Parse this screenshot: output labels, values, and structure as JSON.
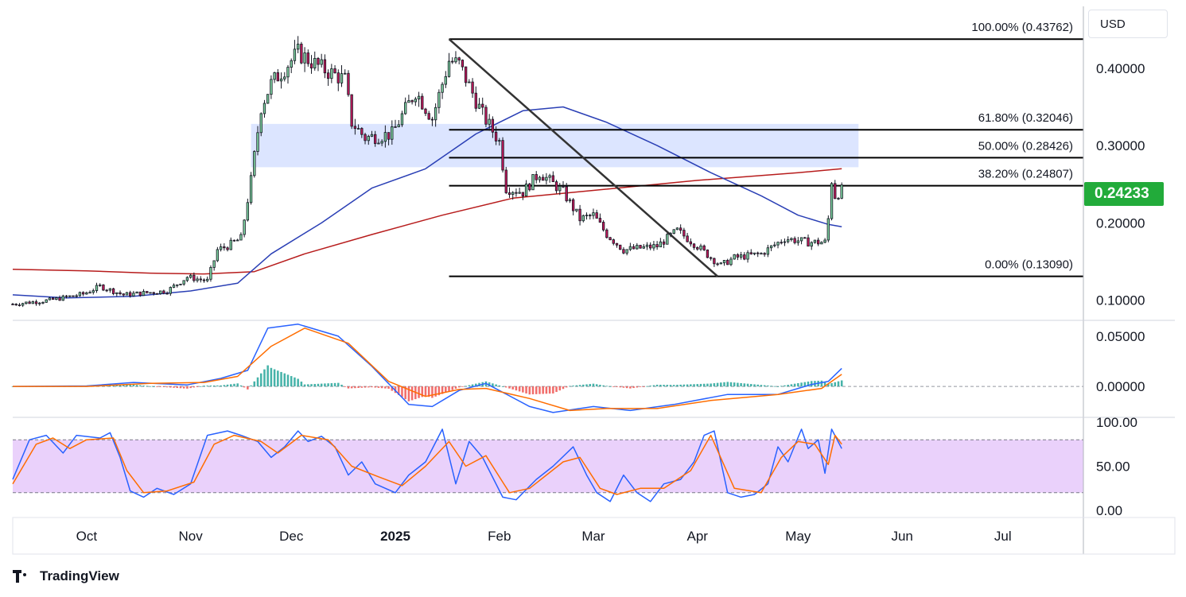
{
  "currency": "USD",
  "last_price_label": "0.24233",
  "brand": "TradingView",
  "colors": {
    "up": "#26a69a",
    "down": "#ef5350",
    "candle": "#131722",
    "ma_fast": "#2a3fb5",
    "ma_slow": "#b71c1c",
    "zone": "#d6e0ff",
    "macd": "#2962ff",
    "signal": "#ff6d00",
    "stoch_fill": "#ead1fb",
    "price_tag": "#22ab3a"
  },
  "chart_data": [
    {
      "type": "candlestick",
      "title": "",
      "ylim": [
        0.075,
        0.48
      ],
      "y_ticks": [
        {
          "value": 0.4,
          "label": "0.40000"
        },
        {
          "value": 0.3,
          "label": "0.30000"
        },
        {
          "value": 0.2,
          "label": "0.20000"
        },
        {
          "value": 0.1,
          "label": "0.10000"
        }
      ],
      "x_range": [
        "2024-09-09",
        "2025-07-25"
      ],
      "x_ticks": [
        {
          "date": "2024-10-01",
          "label": "Oct",
          "bold": false
        },
        {
          "date": "2024-11-01",
          "label": "Nov",
          "bold": false
        },
        {
          "date": "2024-12-01",
          "label": "Dec",
          "bold": false
        },
        {
          "date": "2025-01-01",
          "label": "2025",
          "bold": true
        },
        {
          "date": "2025-02-01",
          "label": "Feb",
          "bold": false
        },
        {
          "date": "2025-03-01",
          "label": "Mar",
          "bold": false
        },
        {
          "date": "2025-04-01",
          "label": "Apr",
          "bold": false
        },
        {
          "date": "2025-05-01",
          "label": "May",
          "bold": false
        },
        {
          "date": "2025-06-01",
          "label": "Jun",
          "bold": false
        },
        {
          "date": "2025-07-01",
          "label": "Jul",
          "bold": false
        }
      ],
      "last_date": "2025-05-14",
      "close_path": [
        [
          "2024-09-09",
          0.095
        ],
        [
          "2024-09-20",
          0.1
        ],
        [
          "2024-09-30",
          0.108
        ],
        [
          "2024-10-05",
          0.118
        ],
        [
          "2024-10-12",
          0.107
        ],
        [
          "2024-10-25",
          0.112
        ],
        [
          "2024-10-31",
          0.13
        ],
        [
          "2024-11-06",
          0.125
        ],
        [
          "2024-11-09",
          0.165
        ],
        [
          "2024-11-12",
          0.17
        ],
        [
          "2024-11-16",
          0.18
        ],
        [
          "2024-11-19",
          0.255
        ],
        [
          "2024-11-22",
          0.35
        ],
        [
          "2024-11-25",
          0.38
        ],
        [
          "2024-12-03",
          0.42
        ],
        [
          "2024-12-10",
          0.4
        ],
        [
          "2024-12-17",
          0.385
        ],
        [
          "2024-12-19",
          0.33
        ],
        [
          "2024-12-23",
          0.31
        ],
        [
          "2024-12-31",
          0.315
        ],
        [
          "2025-01-07",
          0.37
        ],
        [
          "2025-01-12",
          0.335
        ],
        [
          "2025-01-17",
          0.41
        ],
        [
          "2025-01-20",
          0.405
        ],
        [
          "2025-01-27",
          0.34
        ],
        [
          "2025-02-01",
          0.305
        ],
        [
          "2025-02-03",
          0.245
        ],
        [
          "2025-02-08",
          0.24
        ],
        [
          "2025-02-13",
          0.265
        ],
        [
          "2025-02-20",
          0.24
        ],
        [
          "2025-02-25",
          0.205
        ],
        [
          "2025-03-01",
          0.21
        ],
        [
          "2025-03-05",
          0.185
        ],
        [
          "2025-03-10",
          0.165
        ],
        [
          "2025-03-20",
          0.17
        ],
        [
          "2025-03-26",
          0.19
        ],
        [
          "2025-04-01",
          0.17
        ],
        [
          "2025-04-05",
          0.155
        ],
        [
          "2025-04-08",
          0.145
        ],
        [
          "2025-04-12",
          0.155
        ],
        [
          "2025-04-20",
          0.16
        ],
        [
          "2025-04-27",
          0.18
        ],
        [
          "2025-05-04",
          0.175
        ],
        [
          "2025-05-09",
          0.175
        ],
        [
          "2025-05-10",
          0.205
        ],
        [
          "2025-05-11",
          0.255
        ],
        [
          "2025-05-12",
          0.235
        ],
        [
          "2025-05-14",
          0.24233
        ]
      ],
      "ma_fast": [
        [
          "2024-09-09",
          0.107
        ],
        [
          "2024-09-25",
          0.103
        ],
        [
          "2024-10-15",
          0.105
        ],
        [
          "2024-11-01",
          0.112
        ],
        [
          "2024-11-15",
          0.122
        ],
        [
          "2024-11-25",
          0.16
        ],
        [
          "2024-12-10",
          0.2
        ],
        [
          "2024-12-25",
          0.245
        ],
        [
          "2025-01-10",
          0.27
        ],
        [
          "2025-01-25",
          0.315
        ],
        [
          "2025-02-08",
          0.345
        ],
        [
          "2025-02-20",
          0.35
        ],
        [
          "2025-03-05",
          0.33
        ],
        [
          "2025-03-20",
          0.3
        ],
        [
          "2025-04-05",
          0.265
        ],
        [
          "2025-04-20",
          0.235
        ],
        [
          "2025-05-01",
          0.21
        ],
        [
          "2025-05-10",
          0.198
        ],
        [
          "2025-05-14",
          0.195
        ]
      ],
      "ma_slow": [
        [
          "2024-09-09",
          0.14
        ],
        [
          "2024-10-01",
          0.138
        ],
        [
          "2024-10-20",
          0.135
        ],
        [
          "2024-11-05",
          0.134
        ],
        [
          "2024-11-20",
          0.137
        ],
        [
          "2024-12-05",
          0.16
        ],
        [
          "2024-12-25",
          0.185
        ],
        [
          "2025-01-15",
          0.21
        ],
        [
          "2025-02-05",
          0.232
        ],
        [
          "2025-03-01",
          0.242
        ],
        [
          "2025-04-01",
          0.255
        ],
        [
          "2025-05-01",
          0.265
        ],
        [
          "2025-05-14",
          0.27
        ]
      ],
      "zone": {
        "from": "2024-11-19",
        "to": "2025-05-19",
        "top": 0.328,
        "bottom": 0.272
      },
      "fib_levels": [
        {
          "value": 0.43762,
          "label": "100.00% (0.43762)"
        },
        {
          "value": 0.32046,
          "label": "61.80% (0.32046)"
        },
        {
          "value": 0.28426,
          "label": "50.00% (0.28426)"
        },
        {
          "value": 0.24807,
          "label": "38.20% (0.24807)"
        },
        {
          "value": 0.1309,
          "label": "0.00% (0.13090)"
        }
      ],
      "fib_range": [
        "2025-01-17",
        "2025-07-25"
      ],
      "trendline": [
        [
          "2025-01-17",
          0.43762
        ],
        [
          "2025-04-07",
          0.1309
        ]
      ],
      "last_price": 0.24233
    },
    {
      "type": "line",
      "title": "",
      "ylim": [
        -0.03,
        0.065
      ],
      "y_ticks": [
        {
          "value": 0.05,
          "label": "0.05000"
        },
        {
          "value": 0.0,
          "label": "0.00000"
        }
      ],
      "series": [
        {
          "name": "",
          "values": [
            [
              "2024-09-09",
              0.0
            ],
            [
              "2024-10-01",
              0.0005
            ],
            [
              "2024-10-15",
              0.004
            ],
            [
              "2024-10-31",
              0.0015
            ],
            [
              "2024-11-10",
              0.008
            ],
            [
              "2024-11-18",
              0.016
            ],
            [
              "2024-11-24",
              0.058
            ],
            [
              "2024-12-03",
              0.062
            ],
            [
              "2024-12-15",
              0.05
            ],
            [
              "2024-12-25",
              0.02
            ],
            [
              "2025-01-05",
              -0.018
            ],
            [
              "2025-01-12",
              -0.02
            ],
            [
              "2025-01-20",
              -0.004
            ],
            [
              "2025-01-28",
              0.003
            ],
            [
              "2025-02-10",
              -0.02
            ],
            [
              "2025-02-17",
              -0.026
            ],
            [
              "2025-03-01",
              -0.02
            ],
            [
              "2025-03-12",
              -0.024
            ],
            [
              "2025-03-25",
              -0.018
            ],
            [
              "2025-04-10",
              -0.008
            ],
            [
              "2025-04-25",
              -0.008
            ],
            [
              "2025-05-05",
              0.002
            ],
            [
              "2025-05-10",
              0.005
            ],
            [
              "2025-05-14",
              0.018
            ]
          ]
        },
        {
          "name": "",
          "values": [
            [
              "2024-09-09",
              0.0
            ],
            [
              "2024-10-01",
              0.0
            ],
            [
              "2024-10-20",
              0.003
            ],
            [
              "2024-11-05",
              0.004
            ],
            [
              "2024-11-15",
              0.01
            ],
            [
              "2024-11-25",
              0.04
            ],
            [
              "2024-12-05",
              0.058
            ],
            [
              "2024-12-18",
              0.043
            ],
            [
              "2024-12-30",
              0.005
            ],
            [
              "2025-01-10",
              -0.01
            ],
            [
              "2025-01-20",
              -0.003
            ],
            [
              "2025-01-28",
              -0.002
            ],
            [
              "2025-02-10",
              -0.012
            ],
            [
              "2025-02-22",
              -0.024
            ],
            [
              "2025-03-05",
              -0.022
            ],
            [
              "2025-03-20",
              -0.022
            ],
            [
              "2025-04-05",
              -0.014
            ],
            [
              "2025-04-25",
              -0.008
            ],
            [
              "2025-05-08",
              -0.002
            ],
            [
              "2025-05-14",
              0.012
            ]
          ]
        }
      ]
    },
    {
      "type": "line",
      "title": "",
      "ylim": [
        0,
        100
      ],
      "band": [
        20,
        80
      ],
      "y_ticks": [
        {
          "value": 100,
          "label": "100.00"
        },
        {
          "value": 50,
          "label": "50.00"
        },
        {
          "value": 0,
          "label": "0.00"
        }
      ],
      "series": [
        {
          "name": "",
          "values": [
            [
              "2024-09-09",
              35
            ],
            [
              "2024-09-14",
              80
            ],
            [
              "2024-09-19",
              85
            ],
            [
              "2024-09-24",
              65
            ],
            [
              "2024-09-28",
              85
            ],
            [
              "2024-10-05",
              82
            ],
            [
              "2024-10-08",
              88
            ],
            [
              "2024-10-11",
              60
            ],
            [
              "2024-10-14",
              22
            ],
            [
              "2024-10-18",
              15
            ],
            [
              "2024-10-22",
              25
            ],
            [
              "2024-10-27",
              18
            ],
            [
              "2024-11-01",
              30
            ],
            [
              "2024-11-06",
              85
            ],
            [
              "2024-11-12",
              90
            ],
            [
              "2024-11-16",
              85
            ],
            [
              "2024-11-21",
              78
            ],
            [
              "2024-11-25",
              60
            ],
            [
              "2024-11-29",
              72
            ],
            [
              "2024-12-03",
              90
            ],
            [
              "2024-12-06",
              78
            ],
            [
              "2024-12-10",
              84
            ],
            [
              "2024-12-14",
              72
            ],
            [
              "2024-12-18",
              40
            ],
            [
              "2024-12-22",
              55
            ],
            [
              "2024-12-26",
              30
            ],
            [
              "2025-01-01",
              20
            ],
            [
              "2025-01-05",
              40
            ],
            [
              "2025-01-10",
              55
            ],
            [
              "2025-01-15",
              92
            ],
            [
              "2025-01-19",
              30
            ],
            [
              "2025-01-23",
              78
            ],
            [
              "2025-01-27",
              60
            ],
            [
              "2025-02-02",
              15
            ],
            [
              "2025-02-06",
              12
            ],
            [
              "2025-02-12",
              35
            ],
            [
              "2025-02-17",
              50
            ],
            [
              "2025-02-23",
              72
            ],
            [
              "2025-02-27",
              40
            ],
            [
              "2025-03-02",
              20
            ],
            [
              "2025-03-06",
              10
            ],
            [
              "2025-03-10",
              40
            ],
            [
              "2025-03-14",
              20
            ],
            [
              "2025-03-18",
              10
            ],
            [
              "2025-03-22",
              30
            ],
            [
              "2025-03-27",
              35
            ],
            [
              "2025-03-31",
              55
            ],
            [
              "2025-04-03",
              85
            ],
            [
              "2025-04-06",
              90
            ],
            [
              "2025-04-10",
              20
            ],
            [
              "2025-04-14",
              15
            ],
            [
              "2025-04-18",
              18
            ],
            [
              "2025-04-22",
              30
            ],
            [
              "2025-04-25",
              72
            ],
            [
              "2025-04-28",
              55
            ],
            [
              "2025-05-02",
              92
            ],
            [
              "2025-05-04",
              70
            ],
            [
              "2025-05-07",
              80
            ],
            [
              "2025-05-09",
              42
            ],
            [
              "2025-05-11",
              92
            ],
            [
              "2025-05-14",
              70
            ]
          ]
        },
        {
          "name": "",
          "values": [
            [
              "2024-09-09",
              30
            ],
            [
              "2024-09-16",
              75
            ],
            [
              "2024-09-21",
              82
            ],
            [
              "2024-09-26",
              70
            ],
            [
              "2024-10-01",
              80
            ],
            [
              "2024-10-09",
              82
            ],
            [
              "2024-10-13",
              45
            ],
            [
              "2024-10-18",
              20
            ],
            [
              "2024-10-25",
              22
            ],
            [
              "2024-11-02",
              32
            ],
            [
              "2024-11-08",
              75
            ],
            [
              "2024-11-14",
              85
            ],
            [
              "2024-11-22",
              78
            ],
            [
              "2024-11-27",
              65
            ],
            [
              "2024-12-04",
              85
            ],
            [
              "2024-12-12",
              80
            ],
            [
              "2024-12-19",
              50
            ],
            [
              "2024-12-27",
              38
            ],
            [
              "2025-01-03",
              28
            ],
            [
              "2025-01-10",
              50
            ],
            [
              "2025-01-17",
              78
            ],
            [
              "2025-01-22",
              50
            ],
            [
              "2025-01-28",
              62
            ],
            [
              "2025-02-04",
              20
            ],
            [
              "2025-02-10",
              25
            ],
            [
              "2025-02-20",
              55
            ],
            [
              "2025-02-25",
              60
            ],
            [
              "2025-03-03",
              25
            ],
            [
              "2025-03-08",
              18
            ],
            [
              "2025-03-15",
              25
            ],
            [
              "2025-03-22",
              25
            ],
            [
              "2025-03-30",
              45
            ],
            [
              "2025-04-05",
              85
            ],
            [
              "2025-04-12",
              25
            ],
            [
              "2025-04-20",
              20
            ],
            [
              "2025-04-26",
              60
            ],
            [
              "2025-05-01",
              78
            ],
            [
              "2025-05-06",
              75
            ],
            [
              "2025-05-10",
              52
            ],
            [
              "2025-05-12",
              85
            ],
            [
              "2025-05-14",
              75
            ]
          ]
        }
      ]
    }
  ]
}
